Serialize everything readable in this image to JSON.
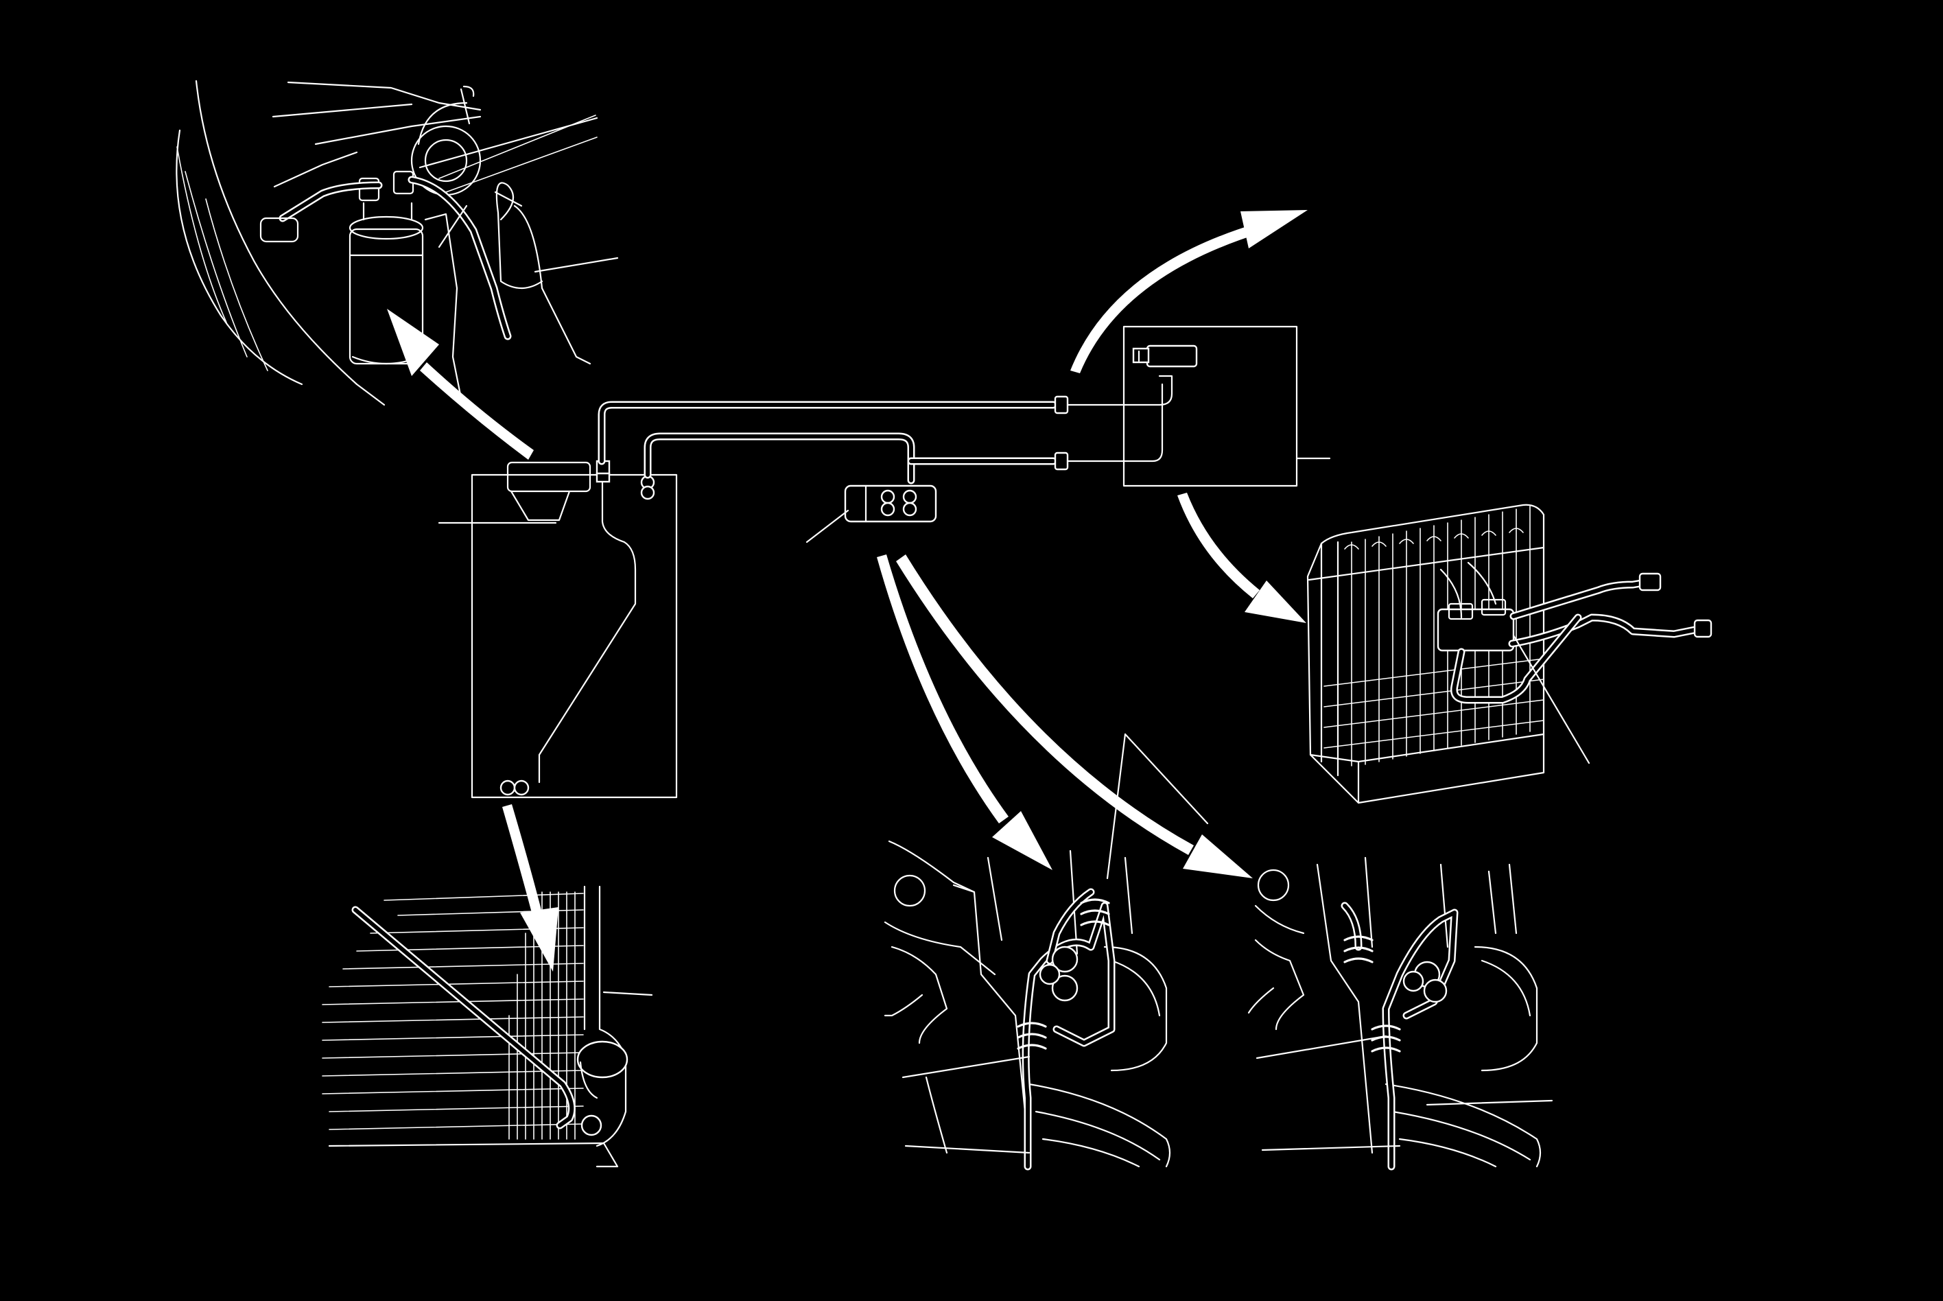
{
  "diagram": {
    "background": "#000000",
    "line_color": "#ffffff",
    "components": [
      "receiver-dryer",
      "condenser",
      "compressor",
      "evaporator",
      "expansion-valve",
      "suction-hose",
      "discharge-hose",
      "condenser-line",
      "receiver-line"
    ]
  }
}
